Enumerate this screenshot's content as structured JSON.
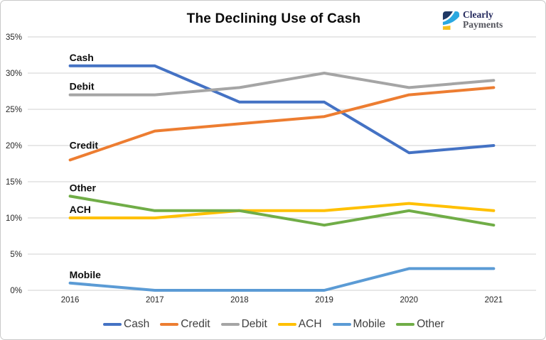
{
  "window": {
    "background": "#ffffff",
    "border_color": "#c9c9c9"
  },
  "brand": {
    "line1": "Clearly",
    "line2": "Payments",
    "line1_color": "#252a5e",
    "line2_color": "#53545c",
    "icon_navy": "#1f3864",
    "icon_light_blue": "#2ba8e0",
    "icon_yellow": "#f4c11d"
  },
  "chart_data": {
    "type": "line",
    "title": "The Declining Use of Cash",
    "categories": [
      "2016",
      "2017",
      "2018",
      "2019",
      "2020",
      "2021"
    ],
    "series": [
      {
        "name": "Cash",
        "color": "#4472C4",
        "values": [
          31,
          31,
          26,
          26,
          19,
          20
        ],
        "label_gap": 7
      },
      {
        "name": "Credit",
        "color": "#ED7D31",
        "values": [
          18,
          22,
          23,
          24,
          27,
          28
        ],
        "label_gap": 16
      },
      {
        "name": "Debit",
        "color": "#A5A5A5",
        "values": [
          27,
          27,
          28,
          30,
          28,
          29
        ],
        "label_gap": 7
      },
      {
        "name": "ACH",
        "color": "#FFC000",
        "values": [
          10,
          10,
          11,
          11,
          12,
          11
        ],
        "label_gap": 7
      },
      {
        "name": "Mobile",
        "color": "#5B9BD5",
        "values": [
          1,
          0,
          0,
          0,
          3,
          3
        ],
        "label_gap": 7
      },
      {
        "name": "Other",
        "color": "#70AD47",
        "values": [
          13,
          11,
          11,
          9,
          11,
          9
        ],
        "label_gap": 7
      }
    ],
    "series_labeled_on_chart": [
      "Cash",
      "Debit",
      "Credit",
      "Other",
      "ACH",
      "Mobile"
    ],
    "ylim": [
      0,
      35
    ],
    "ytick_step": 5,
    "ytick_labels": [
      "0%",
      "5%",
      "10%",
      "15%",
      "20%",
      "25%",
      "30%",
      "35%"
    ],
    "xlabel": "",
    "ylabel": "",
    "grid": "horizontal",
    "gridline_color": "#D9D9D9",
    "legend_position": "bottom",
    "legend_entries": [
      "Cash",
      "Credit",
      "Debit",
      "ACH",
      "Mobile",
      "Other"
    ]
  }
}
